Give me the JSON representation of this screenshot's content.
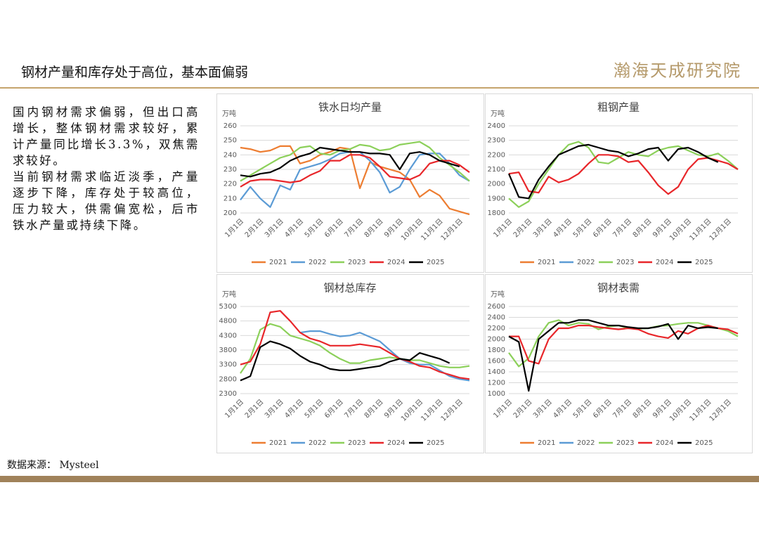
{
  "header": {
    "title": "钢材产量和库存处于高位，基本面偏弱",
    "logo": "瀚海天成研究院"
  },
  "text": {
    "paragraphs": [
      "国内钢材需求偏弱，但出口高增长，整体钢材需求较好，累计产量同比增长3.3%，双焦需求较好。",
      "当前钢材需求临近淡季，产量逐步下降，库存处于较高位，压力较大，供需偏宽松，后市铁水产量或持续下降。"
    ]
  },
  "source": "数据来源： Mysteel",
  "chart_data": [
    {
      "type": "line",
      "title": "铁水日均产量",
      "y_label": "万吨",
      "categories": [
        "1月1日",
        null,
        "2月1日",
        null,
        "3月1日",
        null,
        "4月1日",
        null,
        "5月1日",
        null,
        "6月1日",
        null,
        "7月1日",
        null,
        "8月1日",
        null,
        "9月1日",
        null,
        "10月1日",
        null,
        "11月1日",
        null,
        "12月1日",
        null
      ],
      "ylim": [
        200,
        260
      ],
      "yticks": [
        200,
        210,
        220,
        230,
        240,
        250,
        260
      ],
      "grid": true,
      "series": [
        {
          "name": "2021",
          "color": "#ED7D31",
          "values": [
            245,
            244,
            242,
            243,
            246,
            246,
            234,
            236,
            240,
            242,
            245,
            244,
            217,
            235,
            232,
            230,
            228,
            223,
            211,
            216,
            212,
            203,
            201,
            199
          ]
        },
        {
          "name": "2022",
          "color": "#5B9BD5",
          "values": [
            209,
            218,
            210,
            204,
            219,
            216,
            230,
            232,
            234,
            237,
            241,
            242,
            242,
            236,
            228,
            214,
            218,
            230,
            240,
            241,
            241,
            234,
            226,
            222
          ]
        },
        {
          "name": "2023",
          "color": "#8CD05A",
          "values": [
            222,
            226,
            230,
            234,
            238,
            240,
            245,
            246,
            241,
            240,
            243,
            244,
            247,
            246,
            243,
            244,
            247,
            248,
            249,
            245,
            238,
            233,
            228,
            222
          ]
        },
        {
          "name": "2024",
          "color": "#E8262A",
          "values": [
            218,
            222,
            223,
            223,
            222,
            221,
            222,
            226,
            229,
            236,
            236,
            240,
            240,
            238,
            232,
            225,
            224,
            223,
            226,
            234,
            236,
            236,
            233,
            228
          ]
        },
        {
          "name": "2025",
          "color": "#000000",
          "values": [
            226,
            225,
            227,
            228,
            231,
            236,
            239,
            241,
            245,
            244,
            243,
            242,
            242,
            241,
            241,
            240,
            230,
            241,
            242,
            240,
            236,
            234,
            232,
            null
          ]
        }
      ]
    },
    {
      "type": "line",
      "title": "粗钢产量",
      "y_label": "万吨",
      "categories": [
        "1月1日",
        null,
        "2月1日",
        null,
        "3月1日",
        null,
        "4月1日",
        null,
        "5月1日",
        null,
        "6月1日",
        null,
        "7月1日",
        null,
        "8月1日",
        null,
        "9月1日",
        null,
        "10月1日",
        null,
        "11月1日",
        null,
        "12月1日",
        null
      ],
      "ylim": [
        1800,
        2400
      ],
      "yticks": [
        1800,
        1900,
        2000,
        2100,
        2200,
        2300,
        2400
      ],
      "grid": true,
      "series": [
        {
          "name": "2021",
          "color": "#ED7D31",
          "values": [
            null,
            null,
            null,
            null,
            null,
            null,
            null,
            null,
            null,
            null,
            null,
            null,
            null,
            null,
            null,
            null,
            null,
            null,
            null,
            null,
            null,
            null,
            null,
            null
          ]
        },
        {
          "name": "2022",
          "color": "#5B9BD5",
          "values": [
            null,
            null,
            null,
            null,
            null,
            null,
            null,
            null,
            null,
            null,
            null,
            null,
            null,
            null,
            null,
            null,
            null,
            null,
            null,
            null,
            null,
            null,
            null,
            null
          ]
        },
        {
          "name": "2023",
          "color": "#8CD05A",
          "values": [
            1900,
            1840,
            1880,
            2000,
            2100,
            2200,
            2270,
            2290,
            2250,
            2150,
            2140,
            2180,
            2220,
            2200,
            2190,
            2230,
            2250,
            2260,
            2230,
            2200,
            2190,
            2210,
            2160,
            2100
          ]
        },
        {
          "name": "2024",
          "color": "#E8262A",
          "values": [
            2070,
            2080,
            1950,
            1940,
            2050,
            2010,
            2030,
            2070,
            2140,
            2200,
            2200,
            2190,
            2150,
            2160,
            2080,
            1990,
            1930,
            1980,
            2100,
            2170,
            2180,
            2160,
            2140,
            2100
          ]
        },
        {
          "name": "2025",
          "color": "#000000",
          "values": [
            2070,
            1910,
            1900,
            2030,
            2120,
            2200,
            2230,
            2260,
            2270,
            2250,
            2230,
            2220,
            2190,
            2210,
            2240,
            2250,
            2160,
            2240,
            2250,
            2220,
            2180,
            2150,
            null,
            null
          ]
        }
      ]
    },
    {
      "type": "line",
      "title": "钢材总库存",
      "y_label": "万吨",
      "categories": [
        "1月1日",
        null,
        "2月1日",
        null,
        "3月1日",
        null,
        "4月1日",
        null,
        "5月1日",
        null,
        "6月1日",
        null,
        "7月1日",
        null,
        "8月1日",
        null,
        "9月1日",
        null,
        "10月1日",
        null,
        "11月1日",
        null,
        "12月1日",
        null
      ],
      "ylim": [
        2300,
        5300
      ],
      "yticks": [
        2300,
        2800,
        3300,
        3800,
        4300,
        4800,
        5300
      ],
      "grid": true,
      "series": [
        {
          "name": "2021",
          "color": "#ED7D31",
          "values": [
            null,
            null,
            null,
            null,
            null,
            null,
            null,
            null,
            null,
            null,
            null,
            null,
            null,
            null,
            null,
            null,
            null,
            null,
            null,
            null,
            null,
            null,
            null,
            null
          ]
        },
        {
          "name": "2022",
          "color": "#5B9BD5",
          "values": [
            null,
            null,
            null,
            null,
            null,
            null,
            4400,
            4450,
            4450,
            4350,
            4270,
            4300,
            4400,
            4250,
            4100,
            3800,
            3500,
            3350,
            3300,
            3300,
            3100,
            2900,
            2800,
            2750
          ]
        },
        {
          "name": "2023",
          "color": "#8CD05A",
          "values": [
            3000,
            3500,
            4500,
            4700,
            4600,
            4300,
            4200,
            4100,
            3950,
            3700,
            3500,
            3350,
            3350,
            3450,
            3500,
            3550,
            3500,
            3450,
            3450,
            3350,
            3250,
            3200,
            3200,
            3250
          ]
        },
        {
          "name": "2024",
          "color": "#E8262A",
          "values": [
            3300,
            3400,
            4000,
            5100,
            5150,
            4800,
            4400,
            4200,
            4100,
            3950,
            3950,
            3950,
            4000,
            3950,
            3900,
            3700,
            3500,
            3400,
            3250,
            3200,
            3050,
            2950,
            2850,
            2800
          ]
        },
        {
          "name": "2025",
          "color": "#000000",
          "values": [
            2750,
            2900,
            3900,
            4100,
            4000,
            3850,
            3600,
            3400,
            3300,
            3150,
            3100,
            3100,
            3150,
            3200,
            3250,
            3400,
            3500,
            3450,
            3700,
            3600,
            3500,
            3350,
            null,
            null
          ]
        }
      ]
    },
    {
      "type": "line",
      "title": "钢材表需",
      "y_label": "万吨",
      "categories": [
        "1月1日",
        null,
        "2月1日",
        null,
        "3月1日",
        null,
        "4月1日",
        null,
        "5月1日",
        null,
        "6月1日",
        null,
        "7月1日",
        null,
        "8月1日",
        null,
        "9月1日",
        null,
        "10月1日",
        null,
        "11月1日",
        null,
        "12月1日",
        null
      ],
      "ylim": [
        1000,
        2600
      ],
      "yticks": [
        1000,
        1200,
        1400,
        1600,
        1800,
        2000,
        2200,
        2400,
        2600
      ],
      "grid": true,
      "series": [
        {
          "name": "2021",
          "color": "#ED7D31",
          "values": [
            null,
            null,
            null,
            null,
            null,
            null,
            null,
            null,
            null,
            null,
            null,
            null,
            null,
            null,
            null,
            null,
            null,
            null,
            null,
            null,
            null,
            null,
            null,
            null
          ]
        },
        {
          "name": "2022",
          "color": "#5B9BD5",
          "values": [
            null,
            null,
            null,
            null,
            null,
            null,
            null,
            null,
            null,
            null,
            null,
            null,
            null,
            null,
            null,
            null,
            null,
            null,
            null,
            null,
            null,
            null,
            null,
            null
          ]
        },
        {
          "name": "2023",
          "color": "#8CD05A",
          "values": [
            1750,
            1500,
            1650,
            2050,
            2300,
            2350,
            2250,
            2300,
            2280,
            2180,
            2230,
            2250,
            2200,
            2190,
            2200,
            2240,
            2250,
            2280,
            2300,
            2300,
            2250,
            2200,
            2150,
            2050
          ]
        },
        {
          "name": "2024",
          "color": "#E8262A",
          "values": [
            2050,
            2050,
            1600,
            1550,
            2000,
            2200,
            2200,
            2250,
            2250,
            2220,
            2200,
            2180,
            2200,
            2180,
            2100,
            2050,
            2020,
            2150,
            2100,
            2200,
            2250,
            2200,
            2180,
            2100
          ]
        },
        {
          "name": "2025",
          "color": "#000000",
          "values": [
            2050,
            1950,
            1050,
            2000,
            2150,
            2300,
            2300,
            2350,
            2350,
            2300,
            2250,
            2250,
            2220,
            2200,
            2200,
            2230,
            2280,
            2000,
            2250,
            2200,
            2220,
            2200,
            null,
            null
          ]
        }
      ]
    }
  ]
}
